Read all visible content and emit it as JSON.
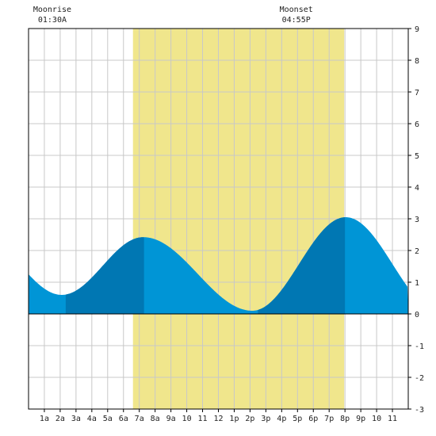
{
  "chart_data": {
    "type": "area",
    "title": "",
    "xlabel": "",
    "ylabel": "",
    "x_unit": "hour of day",
    "xlim": [
      0,
      24
    ],
    "ylim": [
      -3,
      9
    ],
    "grid": true,
    "x_tick_hours": [
      1,
      2,
      3,
      4,
      5,
      6,
      7,
      8,
      9,
      10,
      11,
      12,
      13,
      14,
      15,
      16,
      17,
      18,
      19,
      20,
      21,
      22,
      23
    ],
    "x_tick_labels": [
      "1a",
      "2a",
      "3a",
      "4a",
      "5a",
      "6a",
      "7a",
      "8a",
      "9a",
      "10",
      "11",
      "12",
      "1p",
      "2p",
      "3p",
      "4p",
      "5p",
      "6p",
      "7p",
      "8p",
      "9p",
      "10",
      "11"
    ],
    "y_ticks": [
      9,
      8,
      7,
      6,
      5,
      4,
      3,
      2,
      1,
      0,
      -1,
      -2,
      -3
    ],
    "daylight": {
      "start": 6.6,
      "end": 19.95,
      "color": "#f0e68c"
    },
    "moon": [
      {
        "label": "Moonrise",
        "time": "01:30A",
        "hour": 1.5
      },
      {
        "label": "Moonset",
        "time": "04:55P",
        "hour": 16.92
      }
    ],
    "tide_extremes": [
      {
        "type": "low",
        "hour": 2.1,
        "height": 0.6
      },
      {
        "type": "high",
        "hour": 7.25,
        "height": 2.42
      },
      {
        "type": "low",
        "hour": 14.15,
        "height": 0.1
      },
      {
        "type": "high",
        "hour": 20.05,
        "height": 3.05
      }
    ],
    "start_height": 1.22,
    "end_height": 1.8,
    "dark_bands": [
      [
        2.35,
        7.3
      ],
      [
        14.5,
        20.0
      ]
    ],
    "colors": {
      "tide": "#0095d6",
      "tide_dark": "#0077b3",
      "grid": "#c8c8c8",
      "axis": "#000000"
    }
  }
}
